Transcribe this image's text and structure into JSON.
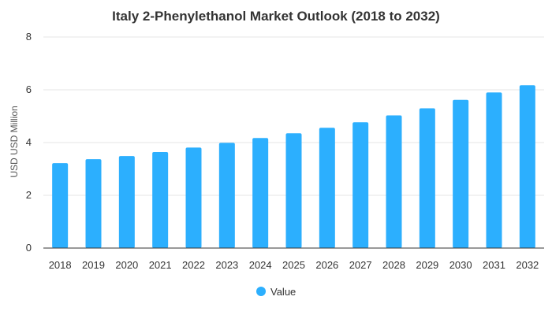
{
  "chart_data": {
    "type": "bar",
    "title": "Italy 2-Phenylethanol Market Outlook (2018 to 2032)",
    "xlabel": "",
    "ylabel": "USD USD Million",
    "ylim": [
      0,
      8
    ],
    "yticks": [
      "0",
      "2",
      "4",
      "6",
      "8"
    ],
    "grid": true,
    "legend_position": "bottom",
    "categories": [
      "2018",
      "2019",
      "2020",
      "2021",
      "2022",
      "2023",
      "2024",
      "2025",
      "2026",
      "2027",
      "2028",
      "2029",
      "2030",
      "2031",
      "2032"
    ],
    "series": [
      {
        "name": "Value",
        "color": "#2caffe",
        "values": [
          3.22,
          3.37,
          3.49,
          3.64,
          3.81,
          3.99,
          4.17,
          4.35,
          4.56,
          4.77,
          5.03,
          5.3,
          5.62,
          5.9,
          6.17
        ]
      }
    ]
  }
}
